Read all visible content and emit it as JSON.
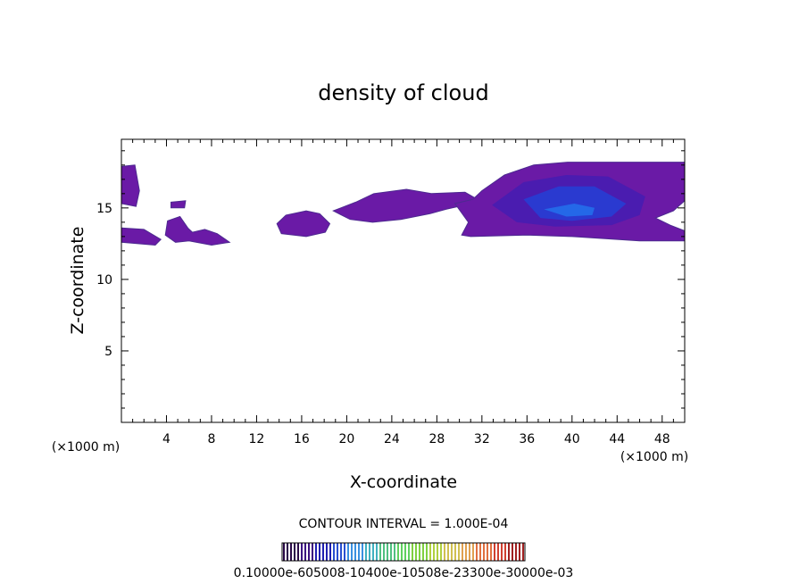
{
  "chart_data": {
    "type": "heatmap",
    "title": "density of cloud",
    "xlabel": "X-coordinate",
    "ylabel": "Z-coordinate",
    "x_unit_left": "(×1000 m)",
    "x_unit_right": "(×1000 m)",
    "xlim": [
      0,
      50
    ],
    "ylim": [
      0,
      19.8
    ],
    "x_ticks": [
      4,
      8,
      12,
      16,
      20,
      24,
      28,
      32,
      36,
      40,
      44,
      48
    ],
    "y_ticks": [
      5,
      10,
      15
    ],
    "contour_interval_text": "CONTOUR INTERVAL = 1.000E-04",
    "colorbar_text": "0.10000e-605008-10400e-10508e-23300e-30000e-03",
    "colorbar_colors": [
      "#2a0a48",
      "#3b1080",
      "#2020b0",
      "#2a50d0",
      "#3a90e0",
      "#40b0c0",
      "#50c080",
      "#60d060",
      "#80d040",
      "#b0d040",
      "#d0c050",
      "#e0a050",
      "#e07040",
      "#d04030",
      "#a02020"
    ],
    "regions": [
      {
        "outer": [
          [
            0,
            17.9
          ],
          [
            1.2,
            18
          ],
          [
            1.6,
            16.2
          ],
          [
            1.3,
            15.1
          ],
          [
            0,
            15.3
          ]
        ],
        "level": 1
      },
      {
        "outer": [
          [
            0,
            13.6
          ],
          [
            2,
            13.5
          ],
          [
            3.5,
            12.8
          ],
          [
            3,
            12.4
          ],
          [
            0,
            12.6
          ]
        ],
        "level": 1
      },
      {
        "outer": [
          [
            4.1,
            14.1
          ],
          [
            5.2,
            14.4
          ],
          [
            5.9,
            13.6
          ],
          [
            6.3,
            13.3
          ],
          [
            7.4,
            13.5
          ],
          [
            8.5,
            13.2
          ],
          [
            9.6,
            12.6
          ],
          [
            8,
            12.4
          ],
          [
            6,
            12.7
          ],
          [
            4.8,
            12.6
          ],
          [
            3.9,
            13.1
          ]
        ],
        "level": 1
      },
      {
        "outer": [
          [
            4.4,
            15.4
          ],
          [
            5.7,
            15.5
          ],
          [
            5.6,
            15.0
          ],
          [
            4.4,
            15.0
          ]
        ],
        "level": 1
      },
      {
        "outer": [
          [
            13.8,
            13.9
          ],
          [
            14.6,
            14.5
          ],
          [
            16.4,
            14.8
          ],
          [
            17.6,
            14.6
          ],
          [
            18.5,
            13.9
          ],
          [
            18.1,
            13.3
          ],
          [
            16.4,
            13.0
          ],
          [
            14.2,
            13.2
          ]
        ],
        "level": 1
      },
      {
        "outer": [
          [
            18.8,
            14.8
          ],
          [
            20.8,
            15.4
          ],
          [
            22.4,
            16.0
          ],
          [
            25.3,
            16.3
          ],
          [
            27.5,
            16.0
          ],
          [
            30.5,
            16.1
          ],
          [
            31.6,
            15.6
          ],
          [
            30.5,
            15.2
          ],
          [
            28.8,
            14.9
          ],
          [
            27.4,
            14.6
          ],
          [
            24.8,
            14.2
          ],
          [
            22.3,
            14.0
          ],
          [
            20.3,
            14.2
          ]
        ],
        "level": 1
      },
      {
        "outer": [
          [
            30.2,
            13.1
          ],
          [
            30.8,
            14.0
          ],
          [
            29.6,
            15.3
          ],
          [
            31.2,
            15.6
          ],
          [
            32,
            16.2
          ],
          [
            34,
            17.3
          ],
          [
            36.6,
            18.0
          ],
          [
            39.6,
            18.2
          ],
          [
            44,
            18.2
          ],
          [
            50,
            18.2
          ],
          [
            50,
            15.5
          ],
          [
            49,
            14.8
          ],
          [
            47.4,
            14.3
          ],
          [
            48.7,
            13.8
          ],
          [
            50,
            13.4
          ],
          [
            50,
            12.7
          ],
          [
            46,
            12.7
          ],
          [
            40,
            13.0
          ],
          [
            36,
            13.1
          ],
          [
            31,
            13.0
          ]
        ],
        "level": 1
      },
      {
        "outer": [
          [
            32.9,
            15.2
          ],
          [
            35.7,
            16.8
          ],
          [
            39.5,
            17.3
          ],
          [
            43.2,
            17.2
          ],
          [
            46.5,
            15.8
          ],
          [
            46.0,
            14.5
          ],
          [
            43.5,
            13.8
          ],
          [
            38.5,
            13.7
          ],
          [
            35.1,
            14.0
          ]
        ],
        "level": 2
      },
      {
        "outer": [
          [
            35.7,
            15.6
          ],
          [
            38.8,
            16.5
          ],
          [
            42.0,
            16.5
          ],
          [
            44.8,
            15.3
          ],
          [
            43.5,
            14.4
          ],
          [
            40.0,
            14.1
          ],
          [
            37.2,
            14.3
          ]
        ],
        "level": 3
      },
      {
        "outer": [
          [
            37.5,
            14.9
          ],
          [
            40.2,
            15.3
          ],
          [
            42.0,
            15.0
          ],
          [
            41.8,
            14.5
          ],
          [
            39.5,
            14.4
          ]
        ],
        "level": 4
      }
    ]
  }
}
